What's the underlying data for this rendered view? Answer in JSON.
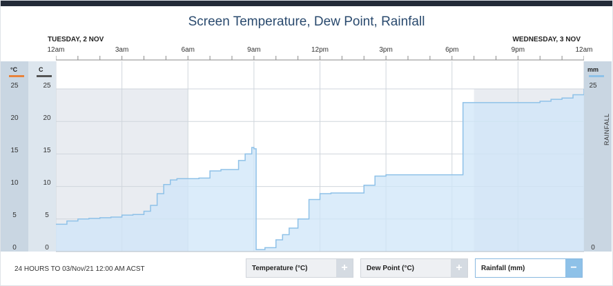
{
  "title": "Screen Temperature, Dew Point, Rainfall",
  "day_labels": [
    "TUESDAY, 2 NOV",
    "WEDNESDAY, 3 NOV"
  ],
  "time_ticks": [
    "12am",
    "3am",
    "6am",
    "9am",
    "12pm",
    "3pm",
    "6pm",
    "9pm",
    "12am"
  ],
  "left_axes": [
    {
      "unit": "°C",
      "color": "#e8823a",
      "ticks": [
        "25",
        "20",
        "15",
        "10",
        "5",
        "0"
      ]
    },
    {
      "unit": "C",
      "color": "#555555",
      "ticks": [
        "25",
        "20",
        "15",
        "10",
        "5",
        "0"
      ]
    }
  ],
  "right_axis": {
    "unit": "mm",
    "color": "#8ec1e8",
    "title": "RAINFALL",
    "ticks": [
      "25",
      "0"
    ]
  },
  "footer": {
    "period": "24 HOURS TO 03/Nov/21 12:00 AM ACST"
  },
  "buttons": [
    {
      "label": "Temperature (°C)",
      "symbol": "+",
      "active": false
    },
    {
      "label": "Dew Point (°C)",
      "symbol": "+",
      "active": false
    },
    {
      "label": "Rainfall (mm)",
      "symbol": "−",
      "active": true
    }
  ],
  "colors": {
    "rain_line": "#8ec1e8",
    "rain_fill": "#cfe6f8",
    "night_shade": "#e9ecf1"
  },
  "chart_data": {
    "type": "area",
    "series": [
      {
        "name": "Rainfall (mm)",
        "x_hours": [
          0,
          0.5,
          1,
          1.5,
          2,
          2.5,
          3,
          3.5,
          4,
          4.3,
          4.6,
          4.9,
          5.2,
          5.5,
          6,
          6.5,
          7,
          7.5,
          8,
          8.3,
          8.6,
          8.9,
          9,
          9.1,
          9.5,
          10,
          10.3,
          10.6,
          11,
          11.5,
          12,
          12.5,
          13,
          13.5,
          14,
          14.5,
          15,
          16,
          17,
          18,
          18.5,
          19,
          20,
          21,
          22,
          22.5,
          23,
          23.5,
          24
        ],
        "y_mm": [
          4.2,
          4.7,
          5.0,
          5.1,
          5.2,
          5.3,
          5.6,
          5.7,
          6.2,
          7.1,
          8.9,
          10.3,
          11.0,
          11.2,
          11.2,
          11.3,
          12.4,
          12.6,
          12.6,
          14.0,
          15.0,
          16.0,
          15.8,
          0.3,
          0.6,
          1.8,
          2.6,
          3.6,
          5.0,
          8.0,
          8.9,
          9.0,
          9.0,
          9.0,
          10.2,
          11.6,
          11.8,
          11.8,
          11.8,
          11.8,
          22.9,
          22.9,
          22.9,
          22.9,
          23.1,
          23.4,
          23.6,
          24.1,
          25.0
        ]
      }
    ],
    "xlabel": "",
    "ylabel": "mm",
    "xlim": [
      0,
      24
    ],
    "ylim": [
      0,
      25
    ],
    "shaded_hours": [
      [
        0,
        6
      ],
      [
        19,
        24
      ]
    ],
    "grid": true
  }
}
